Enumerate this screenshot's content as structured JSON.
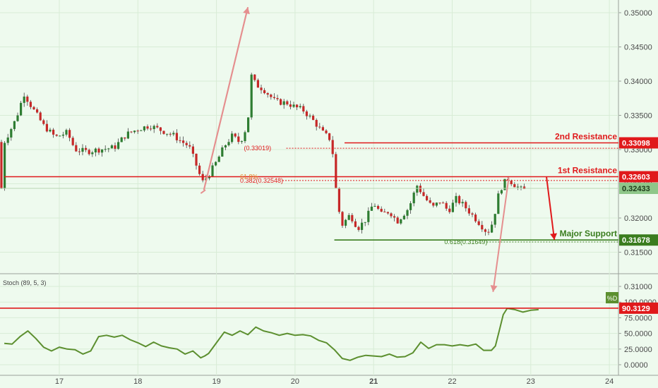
{
  "chart_data": [
    {
      "type": "candlestick",
      "instrument_note": "",
      "x_ticks": [
        "17",
        "18",
        "19",
        "20",
        "21",
        "22",
        "23",
        "24"
      ],
      "y_ticks": [
        "0.35000",
        "0.34500",
        "0.34000",
        "0.33500",
        "0.33000",
        "0.32500",
        "0.32000",
        "0.31500",
        "0.31000"
      ],
      "ylim": [
        0.307,
        0.3522
      ],
      "x_range_days": [
        16.3,
        24.3
      ],
      "candles": [],
      "levels": [
        {
          "name": "2nd Resistance",
          "label": "2nd Resistance",
          "value": 0.33098,
          "tag": "0.33098",
          "color": "#e0191b",
          "x_start_day": 20.63
        },
        {
          "name": "1st Resistance",
          "label": "1st Resistance",
          "value": 0.32603,
          "tag": "0.32603",
          "color": "#e0191b",
          "x_start_day": 16.3
        },
        {
          "name": "Major Support",
          "label": "Major Support",
          "value": 0.31678,
          "tag": "0.31678",
          "color": "#3a7d1e",
          "x_start_day": 20.5
        }
      ],
      "current_price": {
        "value": 0.32433,
        "tag": "0.32433",
        "color": "#8fc78a"
      },
      "fib_levels": [
        {
          "label": "0.382(0.32548)",
          "value": 0.32548,
          "x_day": 19.3
        },
        {
          "label": "(0.33019)",
          "value": 0.33019,
          "x_day": 19.35
        },
        {
          "label": "0.618(0.31649)",
          "value": 0.31649,
          "x_day": 21.9
        }
      ],
      "grid": true
    },
    {
      "type": "line",
      "indicator": "Stoch (89, 5, 3)",
      "y_ticks": [
        "100.0000",
        "75.0000",
        "50.0000",
        "25.0000",
        "0.0000"
      ],
      "ylim": [
        -5,
        105
      ],
      "series": [
        {
          "name": "%D",
          "color": "#5c8f2f",
          "x": [
            16.3,
            16.4,
            16.5,
            16.6,
            16.7,
            16.8,
            16.9,
            17.0,
            17.1,
            17.2,
            17.3,
            17.4,
            17.5,
            17.6,
            17.7,
            17.8,
            17.9,
            18.0,
            18.1,
            18.2,
            18.3,
            18.4,
            18.5,
            18.6,
            18.7,
            18.8,
            18.85,
            18.9,
            19.0,
            19.1,
            19.2,
            19.3,
            19.4,
            19.5,
            19.6,
            19.7,
            19.8,
            19.9,
            20.0,
            20.1,
            20.2,
            20.3,
            20.4,
            20.5,
            20.6,
            20.7,
            20.8,
            20.9,
            21.0,
            21.1,
            21.2,
            21.3,
            21.4,
            21.5,
            21.6,
            21.7,
            21.8,
            21.9,
            22.0,
            22.1,
            22.2,
            22.3,
            22.4,
            22.5,
            22.55,
            22.6,
            22.65,
            22.7,
            22.8,
            22.9,
            23.0,
            23.1
          ],
          "values": [
            34,
            33,
            45,
            54,
            42,
            28,
            22,
            28,
            25,
            24,
            17,
            22,
            45,
            47,
            44,
            47,
            40,
            35,
            29,
            36,
            30,
            27,
            25,
            17,
            22,
            11,
            14,
            18,
            35,
            52,
            47,
            54,
            48,
            60,
            54,
            51,
            47,
            50,
            47,
            48,
            46,
            39,
            35,
            24,
            10,
            7,
            12,
            15,
            14,
            13,
            17,
            12,
            13,
            19,
            36,
            26,
            32,
            32,
            30,
            32,
            30,
            33,
            23,
            23,
            30,
            55,
            80,
            90,
            88,
            84,
            87,
            88
          ]
        }
      ],
      "level": {
        "value": 90.3129,
        "tag": "90.3129",
        "color": "#e0191b"
      },
      "legend": "%D"
    }
  ],
  "labels": {
    "indicator_title": "Stoch (89, 5, 3)",
    "fib_top_partial": "61.8%"
  }
}
